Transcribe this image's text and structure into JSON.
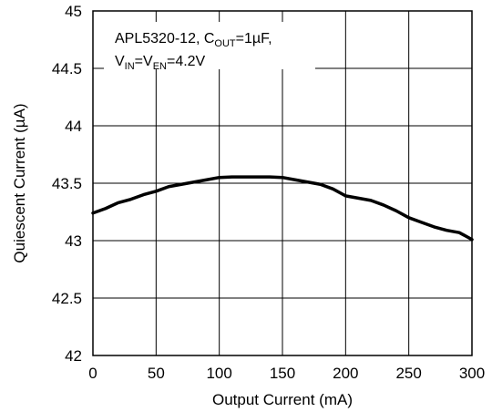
{
  "chart_data": {
    "type": "line",
    "title": "",
    "xlabel": "Output Current (mA)",
    "ylabel": "Quiescent Current (µA)",
    "xlim": [
      0,
      300
    ],
    "ylim": [
      42,
      45
    ],
    "x_ticks": [
      0,
      50,
      100,
      150,
      200,
      250,
      300
    ],
    "y_ticks": [
      42,
      42.5,
      43,
      43.5,
      44,
      44.5,
      45
    ],
    "x_tick_labels": [
      "0",
      "50",
      "100",
      "150",
      "200",
      "250",
      "300"
    ],
    "y_tick_labels": [
      "42",
      "42.5",
      "43",
      "43.5",
      "44",
      "44.5",
      "45"
    ],
    "grid": true,
    "line_color": "#000000",
    "annotation": {
      "line1": {
        "prefix": "APL5320-12, C",
        "sub": "OUT",
        "suffix": "=1µF,"
      },
      "line2": {
        "part1": "V",
        "sub1": "IN",
        "part2": "=V",
        "sub2": "EN",
        "part3": "=4.2V"
      }
    },
    "series": [
      {
        "x": [
          0,
          10,
          20,
          30,
          40,
          50,
          60,
          70,
          80,
          90,
          100,
          110,
          120,
          130,
          140,
          150,
          160,
          170,
          180,
          190,
          200,
          210,
          220,
          230,
          240,
          250,
          260,
          270,
          280,
          290,
          300
        ],
        "y": [
          43.24,
          43.28,
          43.33,
          43.36,
          43.4,
          43.43,
          43.47,
          43.49,
          43.51,
          43.53,
          43.55,
          43.555,
          43.555,
          43.555,
          43.555,
          43.55,
          43.53,
          43.51,
          43.49,
          43.45,
          43.39,
          43.37,
          43.35,
          43.31,
          43.26,
          43.2,
          43.16,
          43.12,
          43.09,
          43.07,
          43.01
        ]
      }
    ]
  }
}
